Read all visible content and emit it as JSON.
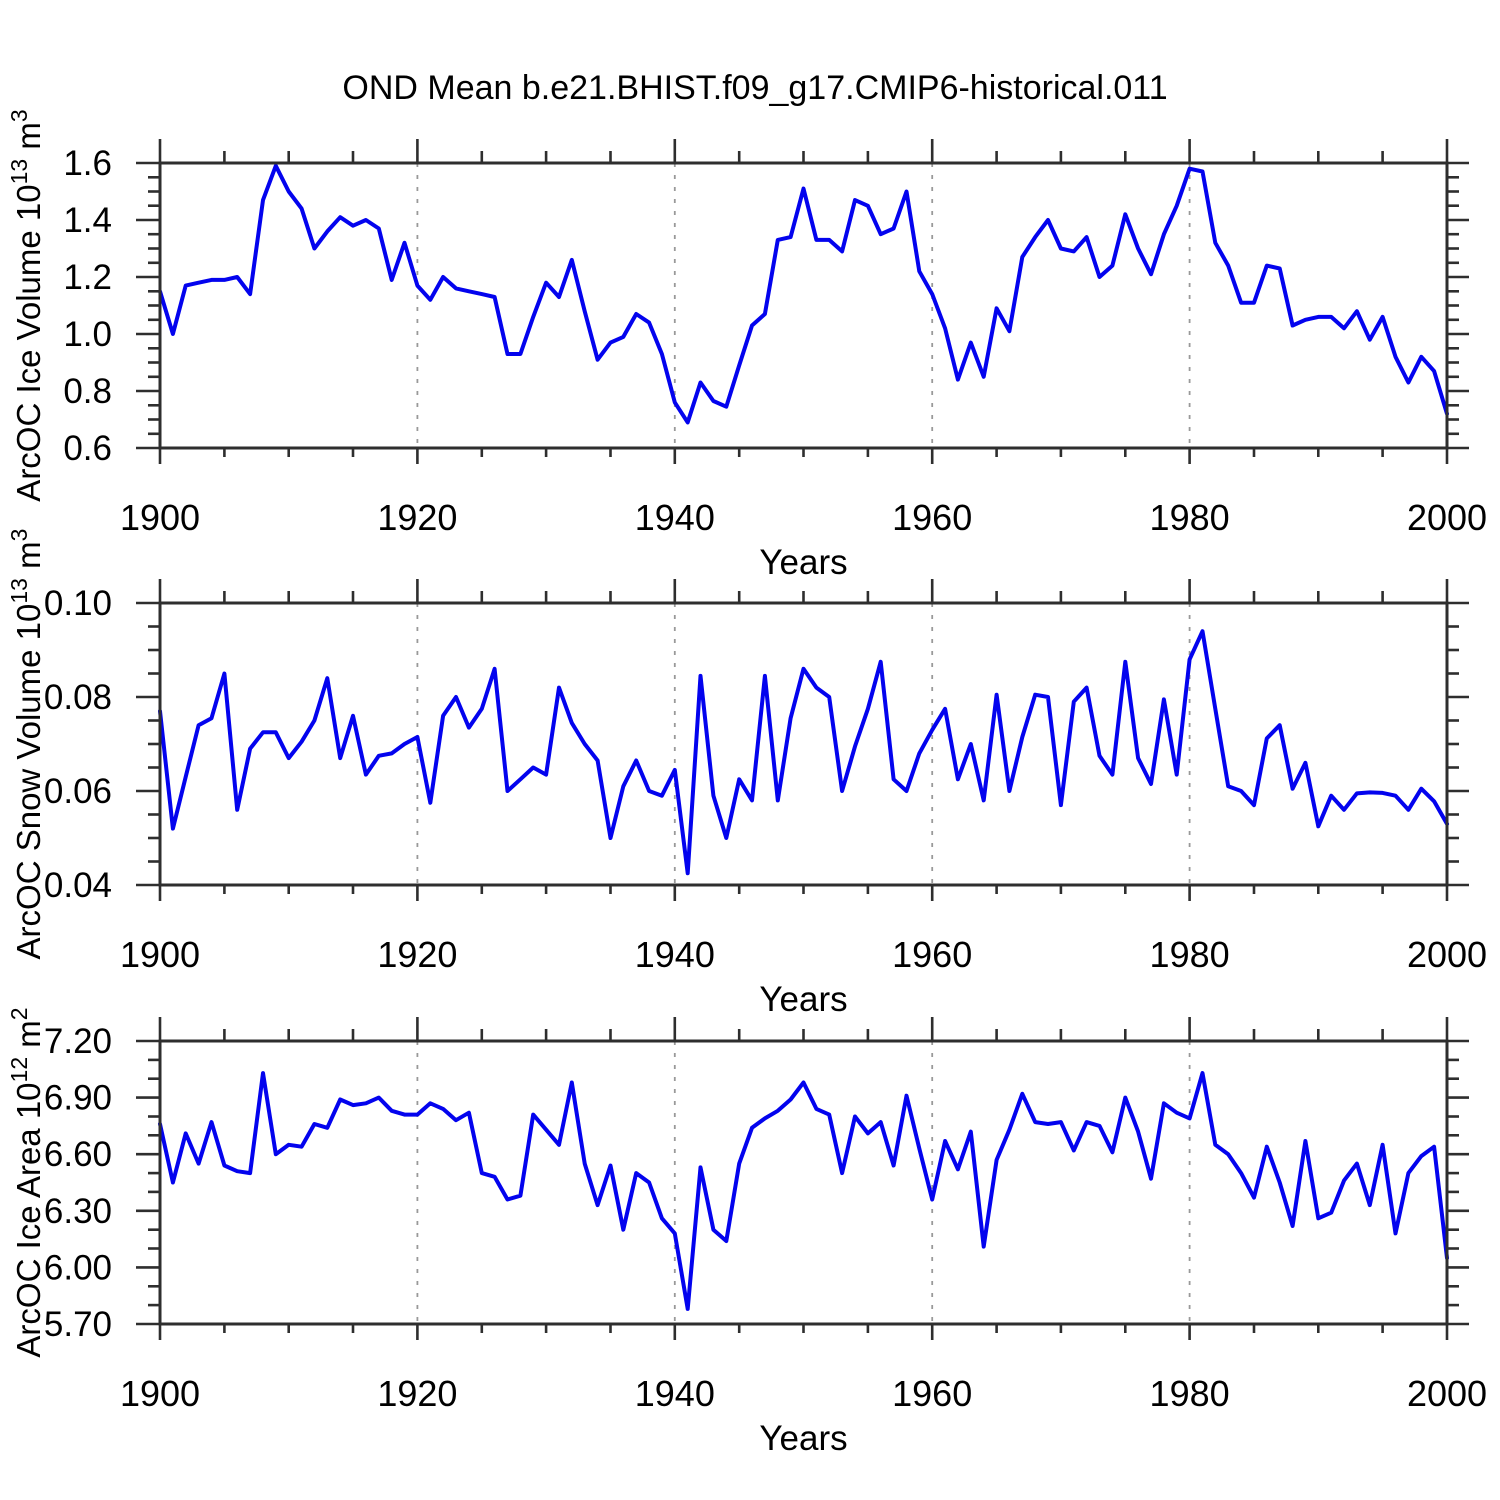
{
  "title": "OND Mean b.e21.BHIST.f09_g17.CMIP6-historical.011",
  "colors": {
    "line": "#0303ee",
    "axis": "#2e2e2e",
    "grid": "#999999",
    "text": "#000000",
    "background": "#ffffff"
  },
  "chart_data": [
    {
      "type": "line",
      "name": "arcoc-ice-volume",
      "ylabel_parts": [
        {
          "t": "ArcOC Ice Volume 10"
        },
        {
          "t": "13",
          "sup": true
        },
        {
          "t": " m"
        },
        {
          "t": "3",
          "sup": true
        }
      ],
      "xlabel": "Years",
      "xlim": [
        1900,
        2000
      ],
      "ylim": [
        0.6,
        1.6
      ],
      "x_major_ticks": [
        1900,
        1920,
        1940,
        1960,
        1980,
        2000
      ],
      "x_tick_labels": [
        "1900",
        "1920",
        "1940",
        "1960",
        "1980",
        "2000"
      ],
      "x_minor_step": 5,
      "grid_x": [
        1920,
        1940,
        1960,
        1980
      ],
      "y_major_ticks": [
        0.6,
        0.8,
        1.0,
        1.2,
        1.4,
        1.6
      ],
      "y_tick_labels": [
        "0.6",
        "0.8",
        "1.0",
        "1.2",
        "1.4",
        "1.6"
      ],
      "y_minor_step": 0.05,
      "years_start": 1900,
      "values": [
        1.15,
        1.0,
        1.17,
        1.18,
        1.19,
        1.19,
        1.2,
        1.14,
        1.47,
        1.59,
        1.5,
        1.44,
        1.3,
        1.36,
        1.41,
        1.38,
        1.4,
        1.37,
        1.19,
        1.32,
        1.17,
        1.12,
        1.2,
        1.16,
        1.15,
        1.14,
        1.13,
        0.93,
        0.93,
        1.06,
        1.18,
        1.13,
        1.26,
        1.08,
        0.91,
        0.97,
        0.99,
        1.07,
        1.04,
        0.93,
        0.76,
        0.69,
        0.83,
        0.765,
        0.745,
        0.89,
        1.03,
        1.07,
        1.33,
        1.34,
        1.51,
        1.33,
        1.33,
        1.29,
        1.47,
        1.45,
        1.35,
        1.37,
        1.5,
        1.22,
        1.14,
        1.02,
        0.84,
        0.97,
        0.85,
        1.09,
        1.01,
        1.27,
        1.34,
        1.4,
        1.3,
        1.29,
        1.34,
        1.2,
        1.24,
        1.42,
        1.3,
        1.21,
        1.35,
        1.45,
        1.58,
        1.57,
        1.32,
        1.24,
        1.11,
        1.11,
        1.24,
        1.23,
        1.03,
        1.05,
        1.06,
        1.06,
        1.02,
        1.08,
        0.98,
        1.06,
        0.92,
        0.83,
        0.92,
        0.87,
        0.72
      ]
    },
    {
      "type": "line",
      "name": "arcoc-snow-volume",
      "ylabel_parts": [
        {
          "t": "ArcOC Snow Volume 10"
        },
        {
          "t": "13",
          "sup": true
        },
        {
          "t": " m"
        },
        {
          "t": "3",
          "sup": true
        }
      ],
      "xlabel": "Years",
      "xlim": [
        1900,
        2000
      ],
      "ylim": [
        0.04,
        0.1
      ],
      "x_major_ticks": [
        1900,
        1920,
        1940,
        1960,
        1980,
        2000
      ],
      "x_tick_labels": [
        "1900",
        "1920",
        "1940",
        "1960",
        "1980",
        "2000"
      ],
      "x_minor_step": 5,
      "grid_x": [
        1920,
        1940,
        1960,
        1980
      ],
      "y_major_ticks": [
        0.04,
        0.06,
        0.08,
        0.1
      ],
      "y_tick_labels": [
        "0.04",
        "0.06",
        "0.08",
        "0.10"
      ],
      "y_minor_step": 0.005,
      "years_start": 1900,
      "values": [
        0.077,
        0.052,
        0.063,
        0.074,
        0.0755,
        0.085,
        0.056,
        0.069,
        0.0725,
        0.0725,
        0.067,
        0.0705,
        0.075,
        0.084,
        0.067,
        0.076,
        0.0635,
        0.0675,
        0.068,
        0.07,
        0.0715,
        0.0575,
        0.076,
        0.08,
        0.0735,
        0.0775,
        0.086,
        0.06,
        0.0625,
        0.065,
        0.0635,
        0.082,
        0.0745,
        0.07,
        0.0665,
        0.05,
        0.061,
        0.0665,
        0.06,
        0.059,
        0.0645,
        0.0425,
        0.0845,
        0.059,
        0.05,
        0.0625,
        0.058,
        0.0845,
        0.058,
        0.0755,
        0.086,
        0.082,
        0.08,
        0.06,
        0.0695,
        0.0775,
        0.0875,
        0.0625,
        0.06,
        0.068,
        0.073,
        0.0775,
        0.0625,
        0.07,
        0.058,
        0.0805,
        0.06,
        0.0715,
        0.0805,
        0.08,
        0.057,
        0.079,
        0.082,
        0.0675,
        0.0635,
        0.0875,
        0.067,
        0.0615,
        0.0795,
        0.0635,
        0.088,
        0.094,
        0.0775,
        0.061,
        0.06,
        0.057,
        0.0712,
        0.074,
        0.0605,
        0.066,
        0.0525,
        0.059,
        0.056,
        0.0595,
        0.0597,
        0.0596,
        0.059,
        0.056,
        0.0605,
        0.0578,
        0.053
      ]
    },
    {
      "type": "line",
      "name": "arcoc-ice-area",
      "ylabel_parts": [
        {
          "t": "ArcOC Ice Area 10"
        },
        {
          "t": "12",
          "sup": true
        },
        {
          "t": " m"
        },
        {
          "t": "2",
          "sup": true
        }
      ],
      "xlabel": "Years",
      "xlim": [
        1900,
        2000
      ],
      "ylim": [
        5.7,
        7.2
      ],
      "x_major_ticks": [
        1900,
        1920,
        1940,
        1960,
        1980,
        2000
      ],
      "x_tick_labels": [
        "1900",
        "1920",
        "1940",
        "1960",
        "1980",
        "2000"
      ],
      "x_minor_step": 5,
      "grid_x": [
        1920,
        1940,
        1960,
        1980
      ],
      "y_major_ticks": [
        5.7,
        6.0,
        6.3,
        6.6,
        6.9,
        7.2
      ],
      "y_tick_labels": [
        "5.70",
        "6.00",
        "6.30",
        "6.60",
        "6.90",
        "7.20"
      ],
      "y_minor_step": 0.1,
      "years_start": 1900,
      "values": [
        6.76,
        6.45,
        6.71,
        6.55,
        6.77,
        6.54,
        6.51,
        6.5,
        7.03,
        6.6,
        6.65,
        6.64,
        6.76,
        6.74,
        6.89,
        6.86,
        6.87,
        6.9,
        6.83,
        6.81,
        6.81,
        6.87,
        6.84,
        6.78,
        6.82,
        6.5,
        6.48,
        6.36,
        6.38,
        6.81,
        6.73,
        6.65,
        6.98,
        6.55,
        6.33,
        6.54,
        6.2,
        6.5,
        6.45,
        6.26,
        6.18,
        5.78,
        6.53,
        6.2,
        6.14,
        6.55,
        6.74,
        6.79,
        6.83,
        6.89,
        6.98,
        6.84,
        6.81,
        6.5,
        6.8,
        6.71,
        6.77,
        6.54,
        6.91,
        6.63,
        6.36,
        6.67,
        6.52,
        6.72,
        6.11,
        6.57,
        6.73,
        6.92,
        6.77,
        6.76,
        6.77,
        6.62,
        6.77,
        6.75,
        6.61,
        6.9,
        6.72,
        6.47,
        6.87,
        6.82,
        6.79,
        7.03,
        6.65,
        6.6,
        6.5,
        6.37,
        6.64,
        6.45,
        6.22,
        6.67,
        6.26,
        6.29,
        6.46,
        6.55,
        6.33,
        6.65,
        6.18,
        6.5,
        6.59,
        6.64,
        6.05
      ]
    }
  ]
}
